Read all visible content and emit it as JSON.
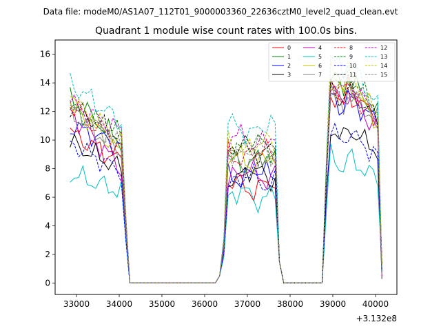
{
  "chart_data": {
    "type": "line",
    "header": "Data file: modeM0/AS1A07_112T01_9000003360_22636cztM0_level2_quad_clean.evt",
    "title": "Quadrant 1 module wise count rates with 100.0s bins.",
    "offset_label": "+3.132e8",
    "xlim": [
      32500,
      40500
    ],
    "ylim": [
      -0.8,
      17.0
    ],
    "xticks": [
      33000,
      34000,
      35000,
      36000,
      37000,
      38000,
      39000,
      40000
    ],
    "xtick_labels": [
      "33000",
      "34000",
      "35000",
      "36000",
      "37000",
      "38000",
      "39000",
      "40000"
    ],
    "yticks": [
      0,
      2,
      4,
      6,
      8,
      10,
      12,
      14,
      16
    ],
    "ytick_labels": [
      "0",
      "2",
      "4",
      "6",
      "8",
      "10",
      "12",
      "14",
      "16"
    ],
    "legend_location": "top-right",
    "x": [
      32850,
      32950,
      33050,
      33150,
      33250,
      33350,
      33450,
      33550,
      33650,
      33750,
      33850,
      33950,
      34050,
      34150,
      34250,
      34350,
      34450,
      34550,
      34650,
      34750,
      34850,
      34950,
      35050,
      35150,
      35250,
      35350,
      35450,
      35550,
      35650,
      35750,
      35850,
      35950,
      36050,
      36150,
      36250,
      36350,
      36450,
      36550,
      36650,
      36750,
      36850,
      36950,
      37050,
      37150,
      37250,
      37350,
      37450,
      37550,
      37650,
      37750,
      37850,
      37950,
      38050,
      38150,
      38250,
      38350,
      38450,
      38550,
      38650,
      38750,
      38850,
      38950,
      39050,
      39150,
      39250,
      39350,
      39450,
      39550,
      39650,
      39750,
      39850,
      39950,
      40050,
      40150
    ],
    "series": [
      {
        "name": "0",
        "color": "#ff0000",
        "dash": false,
        "base": [
          10.5,
          8.5,
          6.8,
          13.6,
          11.8
        ]
      },
      {
        "name": "1",
        "color": "#008000",
        "dash": false,
        "base": [
          13.0,
          9.8,
          8.6,
          14.8,
          11.8
        ]
      },
      {
        "name": "2",
        "color": "#0000ff",
        "dash": false,
        "base": [
          11.0,
          9.6,
          7.6,
          13.4,
          11.4
        ]
      },
      {
        "name": "3",
        "color": "#000000",
        "dash": false,
        "base": [
          9.8,
          8.0,
          7.6,
          11.2,
          9.4
        ]
      },
      {
        "name": "4",
        "color": "#bf00bf",
        "dash": false,
        "base": [
          12.0,
          8.0,
          7.6,
          13.8,
          10.6
        ]
      },
      {
        "name": "5",
        "color": "#00bfbf",
        "dash": false,
        "base": [
          7.6,
          6.4,
          6.1,
          9.2,
          7.4
        ]
      },
      {
        "name": "6",
        "color": "#bfbf00",
        "dash": false,
        "base": [
          12.8,
          9.0,
          8.6,
          14.4,
          11.2
        ]
      },
      {
        "name": "7",
        "color": "#808080",
        "dash": false,
        "base": [
          12.0,
          9.2,
          8.6,
          13.6,
          11.6
        ]
      },
      {
        "name": "8",
        "color": "#ff0000",
        "dash": true,
        "base": [
          12.6,
          9.4,
          9.0,
          14.2,
          11.0
        ]
      },
      {
        "name": "9",
        "color": "#008000",
        "dash": true,
        "base": [
          12.2,
          10.4,
          9.6,
          15.0,
          12.2
        ]
      },
      {
        "name": "10",
        "color": "#0000ff",
        "dash": true,
        "base": [
          9.8,
          7.8,
          7.2,
          11.0,
          9.0
        ]
      },
      {
        "name": "11",
        "color": "#000000",
        "dash": true,
        "base": [
          12.4,
          10.2,
          9.4,
          14.0,
          11.6
        ]
      },
      {
        "name": "12",
        "color": "#bf00bf",
        "dash": true,
        "base": [
          12.6,
          10.6,
          10.0,
          14.4,
          11.8
        ]
      },
      {
        "name": "13",
        "color": "#00bfbf",
        "dash": true,
        "base": [
          14.0,
          11.2,
          10.8,
          16.0,
          12.4
        ]
      },
      {
        "name": "14",
        "color": "#bfbf00",
        "dash": true,
        "base": [
          12.8,
          10.0,
          9.6,
          15.2,
          11.6
        ]
      },
      {
        "name": "15",
        "color": "#808080",
        "dash": true,
        "base": [
          12.2,
          9.6,
          9.2,
          14.6,
          11.6
        ]
      }
    ]
  }
}
